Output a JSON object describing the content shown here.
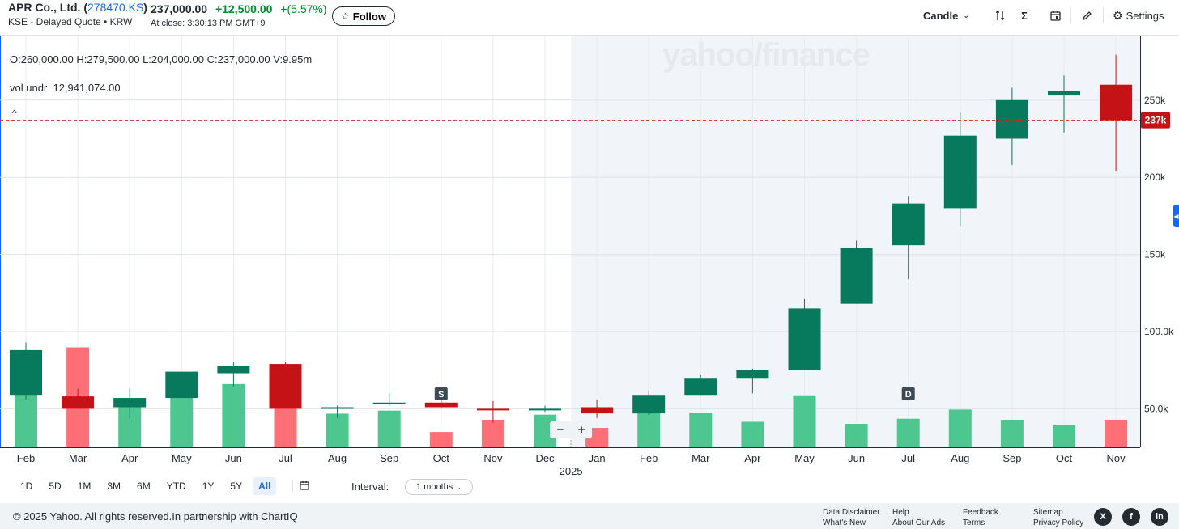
{
  "header": {
    "company": "APR Co., Ltd.",
    "symbol_open": "(",
    "symbol": "278470.KS",
    "symbol_close": ")",
    "exchange_line": "KSE - Delayed Quote • KRW",
    "price": "237,000.00",
    "change": "+12,500.00",
    "change_pct": "+(5.57%)",
    "close_time": "At close: 3:30:13 PM GMT+9",
    "follow_label": "Follow"
  },
  "toolbar": {
    "chart_type": "Candle",
    "settings_label": "Settings"
  },
  "overlay": {
    "ohlc": "O:260,000.00  H:279,500.00  L:204,000.00  C:237,000.00  V:9.95m",
    "volume_label": "vol undr",
    "volume_value": "12,941,074.00",
    "watermark": "yahoo/finance",
    "collapse": "^"
  },
  "range": {
    "buttons": [
      "1D",
      "5D",
      "1M",
      "3M",
      "6M",
      "YTD",
      "1Y",
      "5Y",
      "All"
    ],
    "active": "All",
    "interval_label": "Interval:",
    "interval_value": "1 months"
  },
  "footer": {
    "copyright": "© 2025 Yahoo. All rights reserved.In partnership with ChartIQ",
    "links": [
      "Data Disclaimer",
      "What's New",
      "Help",
      "About Our Ads",
      "Feedback",
      "Terms",
      "Sitemap",
      "Privacy Policy"
    ],
    "social": [
      "X",
      "f",
      "in"
    ]
  },
  "colors": {
    "up": "#077a5d",
    "down": "#c51217",
    "vol_up": "#4dc78f",
    "vol_down": "#ff6f75",
    "accent": "#0f69ff",
    "price_line": "#e02020"
  },
  "chart_data": {
    "type": "candlestick",
    "interval": "1 months",
    "categories": [
      "Feb",
      "Mar",
      "Apr",
      "May",
      "Jun",
      "Jul",
      "Aug",
      "Sep",
      "Oct",
      "Nov",
      "Dec",
      "Jan",
      "Feb",
      "Mar",
      "Apr",
      "May",
      "Jun",
      "Jul",
      "Aug",
      "Sep",
      "Oct",
      "Nov"
    ],
    "year_marker": {
      "index": 11,
      "label": "2025"
    },
    "candles": [
      {
        "o": 59000,
        "h": 93000,
        "l": 56000,
        "c": 88000
      },
      {
        "o": 58000,
        "h": 63000,
        "l": 50000,
        "c": 50000
      },
      {
        "o": 51000,
        "h": 63000,
        "l": 44000,
        "c": 57000
      },
      {
        "o": 57000,
        "h": 74000,
        "l": 57000,
        "c": 74000
      },
      {
        "o": 73000,
        "h": 80000,
        "l": 64000,
        "c": 78000
      },
      {
        "o": 79000,
        "h": 80000,
        "l": 50000,
        "c": 50000
      },
      {
        "o": 51000,
        "h": 52000,
        "l": 44000,
        "c": 51000
      },
      {
        "o": 54000,
        "h": 60000,
        "l": 52000,
        "c": 54000
      },
      {
        "o": 54000,
        "h": 56000,
        "l": 50000,
        "c": 51000
      },
      {
        "o": 50000,
        "h": 55000,
        "l": 41000,
        "c": 49000
      },
      {
        "o": 49000,
        "h": 52000,
        "l": 48000,
        "c": 50000
      },
      {
        "o": 51000,
        "h": 56000,
        "l": 44000,
        "c": 47000
      },
      {
        "o": 47000,
        "h": 62000,
        "l": 46000,
        "c": 59000
      },
      {
        "o": 59000,
        "h": 72000,
        "l": 59000,
        "c": 70000
      },
      {
        "o": 70000,
        "h": 76000,
        "l": 60000,
        "c": 75000
      },
      {
        "o": 75000,
        "h": 121000,
        "l": 75000,
        "c": 115000
      },
      {
        "o": 118000,
        "h": 159000,
        "l": 118000,
        "c": 154000
      },
      {
        "o": 156000,
        "h": 188000,
        "l": 134000,
        "c": 183000
      },
      {
        "o": 180000,
        "h": 242000,
        "l": 168000,
        "c": 227000
      },
      {
        "o": 225000,
        "h": 258000,
        "l": 208000,
        "c": 250000
      },
      {
        "o": 253000,
        "h": 266000,
        "l": 229000,
        "c": 256000
      },
      {
        "o": 260000,
        "h": 279500,
        "l": 204000,
        "c": 237000
      }
    ],
    "volume_bar_levels": [
      0.52,
      0.98,
      0.46,
      0.72,
      0.62,
      0.81,
      0.33,
      0.36,
      0.15,
      0.27,
      0.32,
      0.19,
      0.49,
      0.34,
      0.25,
      0.51,
      0.23,
      0.28,
      0.37,
      0.27,
      0.22,
      0.27
    ],
    "y_ticks": [
      50000,
      100000,
      150000,
      200000,
      250000
    ],
    "y_tick_labels": [
      "50.0k",
      "100.0k",
      "150k",
      "200k",
      "250k"
    ],
    "last_price_label": "237k",
    "last_price": 237000,
    "events": [
      {
        "index": 8,
        "label": "S"
      },
      {
        "index": 17,
        "label": "D"
      }
    ]
  }
}
